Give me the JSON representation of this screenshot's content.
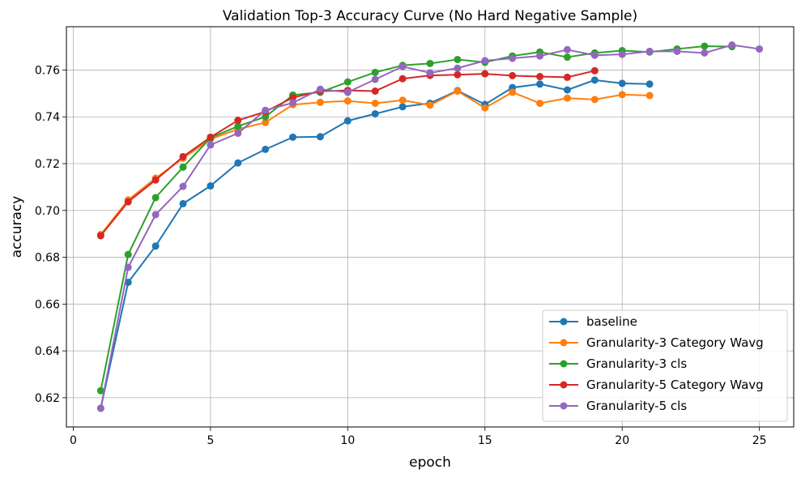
{
  "chart_data": {
    "type": "line",
    "title": "Validation Top-3 Accuracy Curve (No Hard Negative Sample)",
    "xlabel": "epoch",
    "ylabel": "accuracy",
    "xlim": [
      -0.25,
      26.25
    ],
    "ylim": [
      0.6075,
      0.7785
    ],
    "xticks": [
      0,
      5,
      10,
      15,
      20,
      25
    ],
    "yticks": [
      0.62,
      0.64,
      0.66,
      0.68,
      0.7,
      0.72,
      0.74,
      0.76
    ],
    "ytick_labels": [
      "0.62",
      "0.64",
      "0.66",
      "0.68",
      "0.70",
      "0.72",
      "0.74",
      "0.76"
    ],
    "grid": true,
    "legend_position": "lower-right",
    "series": [
      {
        "name": "baseline",
        "color": "#1f77b4",
        "x": [
          1,
          2,
          3,
          4,
          5,
          6,
          7,
          8,
          9,
          10,
          11,
          12,
          13,
          14,
          15,
          16,
          17,
          18,
          19,
          20,
          21
        ],
        "values": [
          0.6155,
          0.6693,
          0.6848,
          0.7029,
          0.7105,
          0.7203,
          0.7261,
          0.7313,
          0.7315,
          0.7383,
          0.7413,
          0.7443,
          0.7458,
          0.7512,
          0.7453,
          0.7525,
          0.754,
          0.7515,
          0.7557,
          0.7543,
          0.754
        ]
      },
      {
        "name": "Granularity-3 Category Wavg",
        "color": "#ff7f0e",
        "x": [
          1,
          2,
          3,
          4,
          5,
          6,
          7,
          8,
          9,
          10,
          11,
          12,
          13,
          14,
          15,
          16,
          17,
          18,
          19,
          20,
          21
        ],
        "values": [
          0.6897,
          0.7045,
          0.7138,
          0.7223,
          0.7305,
          0.7347,
          0.7376,
          0.7452,
          0.7462,
          0.7468,
          0.7458,
          0.7471,
          0.745,
          0.751,
          0.7438,
          0.7505,
          0.7458,
          0.748,
          0.7474,
          0.7495,
          0.7491
        ]
      },
      {
        "name": "Granularity-3 cls",
        "color": "#2ca02c",
        "x": [
          1,
          2,
          3,
          4,
          5,
          6,
          7,
          8,
          9,
          10,
          11,
          12,
          13,
          14,
          15,
          16,
          17,
          18,
          19,
          20,
          21,
          22,
          23,
          24
        ],
        "values": [
          0.623,
          0.6812,
          0.7055,
          0.7185,
          0.731,
          0.736,
          0.74,
          0.7493,
          0.7505,
          0.7549,
          0.759,
          0.762,
          0.7628,
          0.7645,
          0.7633,
          0.766,
          0.7677,
          0.7655,
          0.7673,
          0.7683,
          0.7677,
          0.769,
          0.7702,
          0.77
        ]
      },
      {
        "name": "Granularity-5 Category Wavg",
        "color": "#d62728",
        "x": [
          1,
          2,
          3,
          4,
          5,
          6,
          7,
          8,
          9,
          10,
          11,
          12,
          13,
          14,
          15,
          16,
          17,
          18,
          19
        ],
        "values": [
          0.6892,
          0.7037,
          0.713,
          0.723,
          0.7313,
          0.7385,
          0.7422,
          0.7482,
          0.751,
          0.7513,
          0.751,
          0.7563,
          0.7577,
          0.758,
          0.7584,
          0.7576,
          0.7572,
          0.7569,
          0.7597
        ]
      },
      {
        "name": "Granularity-5 cls",
        "color": "#9467bd",
        "x": [
          1,
          2,
          3,
          4,
          5,
          6,
          7,
          8,
          9,
          10,
          11,
          12,
          13,
          14,
          15,
          16,
          17,
          18,
          19,
          20,
          21,
          22,
          23,
          24,
          25
        ],
        "values": [
          0.6155,
          0.6757,
          0.6982,
          0.7103,
          0.728,
          0.733,
          0.7428,
          0.746,
          0.7518,
          0.7505,
          0.756,
          0.7615,
          0.7588,
          0.7608,
          0.764,
          0.765,
          0.766,
          0.7687,
          0.7663,
          0.7667,
          0.768,
          0.768,
          0.7673,
          0.7707,
          0.769
        ]
      }
    ]
  }
}
